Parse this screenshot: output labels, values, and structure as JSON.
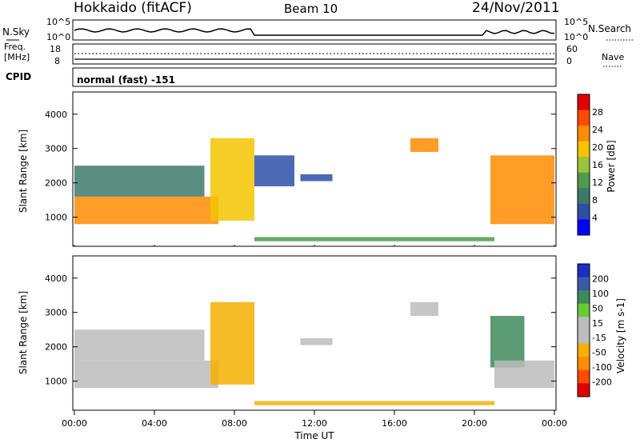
{
  "header": {
    "radar": "Hokkaido (fitACF)",
    "beam": "Beam 10",
    "date": "24/Nov/2011"
  },
  "noise_panel": {
    "left_label": "N.Sky",
    "right_label": "N.Search",
    "tick_top": "10^5",
    "tick_bottom": "10^0"
  },
  "freq_panel": {
    "left_label_1": "Freq.",
    "left_label_2": "[MHz]",
    "left_ticks": [
      "18",
      "8"
    ],
    "right_label": "Nave",
    "right_ticks": [
      "60",
      "0"
    ]
  },
  "cpid_panel": {
    "label": "CPID",
    "value": "normal (fast) -151"
  },
  "colors": {
    "power": [
      "#0000ff",
      "#2d4fa8",
      "#3d7a6a",
      "#4f9a4f",
      "#9ac43a",
      "#f5c400",
      "#ff8c00",
      "#ff4a00",
      "#e00000"
    ],
    "velocity": [
      "#e00000",
      "#ff4a00",
      "#ff8c00",
      "#f5b000",
      "#bcbcbc",
      "#bcbcbc",
      "#66cc33",
      "#3d8a5a",
      "#3a5aa8",
      "#1a2fc0"
    ]
  },
  "chart_data": [
    {
      "type": "heatmap",
      "panel": "power",
      "ylabel": "Slant Range [km]",
      "y_ticks": [
        "1000",
        "2000",
        "3000",
        "4000"
      ],
      "ylim": [
        200,
        4600
      ],
      "colorbar": {
        "label": "Power [dB]",
        "ticks": [
          "4",
          "8",
          "12",
          "16",
          "20",
          "24",
          "28"
        ],
        "range": [
          0,
          32
        ]
      },
      "echo_regions": [
        {
          "start_h": 0.0,
          "end_h": 7.2,
          "range_km": [
            800,
            1600
          ],
          "power_db": 24
        },
        {
          "start_h": 0.0,
          "end_h": 6.5,
          "range_km": [
            1600,
            2500
          ],
          "power_db": 10
        },
        {
          "start_h": 6.8,
          "end_h": 9.0,
          "range_km": [
            900,
            3300
          ],
          "power_db": 20
        },
        {
          "start_h": 9.0,
          "end_h": 11.0,
          "range_km": [
            1900,
            2800
          ],
          "power_db": 6
        },
        {
          "start_h": 11.3,
          "end_h": 12.9,
          "range_km": [
            2050,
            2250
          ],
          "power_db": 6
        },
        {
          "start_h": 9.0,
          "end_h": 21.0,
          "range_km": [
            300,
            420
          ],
          "power_db": 14
        },
        {
          "start_h": 16.8,
          "end_h": 18.2,
          "range_km": [
            2900,
            3300
          ],
          "power_db": 22
        },
        {
          "start_h": 20.8,
          "end_h": 24.0,
          "range_km": [
            800,
            2800
          ],
          "power_db": 24
        }
      ]
    },
    {
      "type": "heatmap",
      "panel": "velocity",
      "ylabel": "Slant Range [km]",
      "xlabel": "Time UT",
      "x_ticks": [
        "00:00",
        "04:00",
        "08:00",
        "12:00",
        "16:00",
        "20:00",
        "00:00"
      ],
      "y_ticks": [
        "1000",
        "2000",
        "3000",
        "4000"
      ],
      "ylim": [
        200,
        4600
      ],
      "colorbar": {
        "label": "Velocity [m s-1]",
        "ticks": [
          "200",
          "100",
          "50",
          "15",
          "-15",
          "-50",
          "-100",
          "-200"
        ],
        "range": [
          -250,
          250
        ]
      },
      "echo_regions": [
        {
          "start_h": 0.0,
          "end_h": 7.2,
          "range_km": [
            800,
            1600
          ],
          "velocity": 0
        },
        {
          "start_h": 0.0,
          "end_h": 6.5,
          "range_km": [
            1600,
            2500
          ],
          "velocity": 0
        },
        {
          "start_h": 6.8,
          "end_h": 9.0,
          "range_km": [
            900,
            3300
          ],
          "velocity": -30
        },
        {
          "start_h": 11.3,
          "end_h": 12.9,
          "range_km": [
            2050,
            2250
          ],
          "velocity": 0
        },
        {
          "start_h": 9.0,
          "end_h": 21.0,
          "range_km": [
            300,
            420
          ],
          "velocity": -40
        },
        {
          "start_h": 16.8,
          "end_h": 18.2,
          "range_km": [
            2900,
            3300
          ],
          "velocity": 0
        },
        {
          "start_h": 20.8,
          "end_h": 22.5,
          "range_km": [
            1400,
            2900
          ],
          "velocity": 60
        },
        {
          "start_h": 21.0,
          "end_h": 24.0,
          "range_km": [
            800,
            1600
          ],
          "velocity": 0
        }
      ]
    }
  ]
}
